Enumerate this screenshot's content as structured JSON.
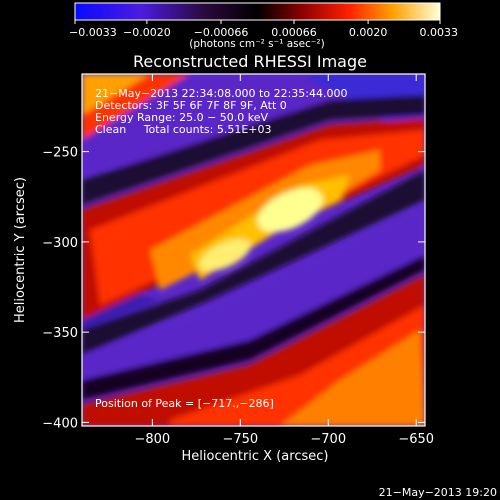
{
  "chart_data": {
    "type": "heatmap",
    "title": "Reconstructed RHESSI Image",
    "xlabel": "Heliocentric X (arcsec)",
    "ylabel": "Heliocentric Y (arcsec)",
    "xlim": [
      -840,
      -645
    ],
    "ylim": [
      -402,
      -207
    ],
    "x_ticks": [
      -800,
      -750,
      -700,
      -650
    ],
    "x_tick_labels": [
      "−800",
      "−750",
      "−700",
      "−650"
    ],
    "y_ticks": [
      -250,
      -300,
      -350,
      -400
    ],
    "y_tick_labels": [
      "−250",
      "−300",
      "−350",
      "−400"
    ],
    "colorbar": {
      "range": [
        -0.0033,
        0.0033
      ],
      "tick_values": [
        -0.0033,
        -0.002,
        -0.00066,
        0.00066,
        0.002,
        0.0033
      ],
      "tick_labels": [
        "−0.0033",
        "−0.0020",
        "−0.00066",
        "0.00066",
        "0.0020",
        "0.0033"
      ],
      "unit_label": "(photons cm⁻² s⁻¹ asec⁻²)"
    },
    "info_lines": [
      "21−May−2013 22:34:08.000 to 22:35:44.000",
      "Detectors: 3F 5F 6F 7F 8F 9F, Att 0",
      "Energy Range: 25.0 − 50.0 keV",
      "Clean     Total counts: 5.51E+03"
    ],
    "peak_label": "Position of Peak = [−717.,−286]",
    "peak_position": [
      -717,
      -286
    ],
    "grid": false
  },
  "footer": {
    "timestamp": "21−May−2013 19:20"
  }
}
